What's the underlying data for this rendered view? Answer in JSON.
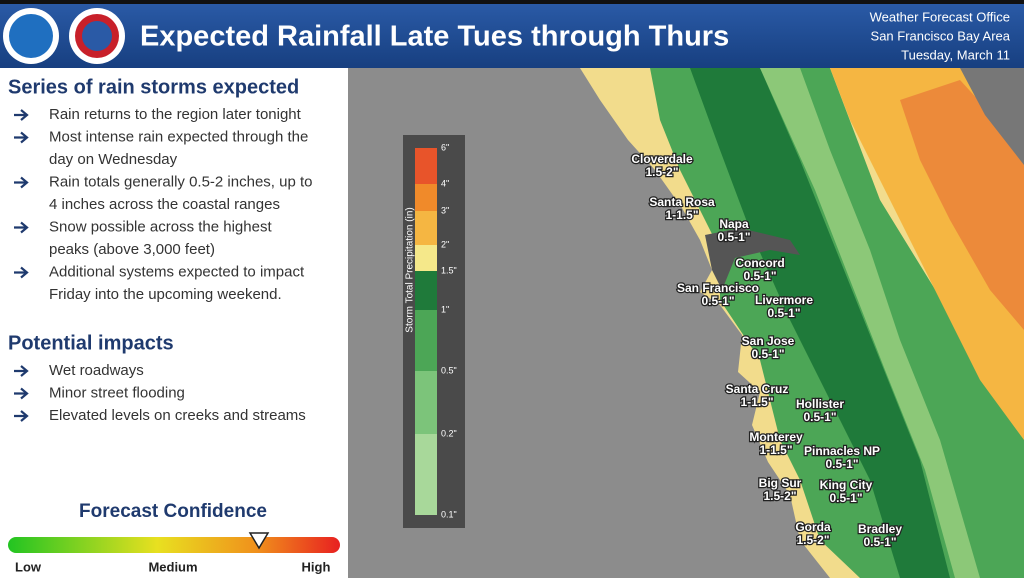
{
  "header": {
    "title": "Expected Rainfall Late Tues through Thurs",
    "office": [
      "Weather Forecast Office",
      "San Francisco Bay Area",
      "Tuesday, March 11"
    ]
  },
  "sections": [
    {
      "heading": "Series of rain storms expected",
      "bullets": [
        [
          "Rain returns to the region later tonight"
        ],
        [
          "Most intense rain expected through the",
          "day on Wednesday"
        ],
        [
          "Rain totals generally 0.5-2 inches, up to",
          "4 inches across the coastal ranges"
        ],
        [
          "Snow possible across the highest",
          "peaks (above 3,000 feet)"
        ],
        [
          "Additional systems expected to impact",
          "Friday into the upcoming weekend."
        ]
      ]
    },
    {
      "heading": "Potential impacts",
      "bullets": [
        [
          "Wet roadways"
        ],
        [
          "Minor street flooding"
        ],
        [
          "Elevated levels on creeks and streams"
        ]
      ]
    }
  ],
  "confidence": {
    "title": "Forecast Confidence",
    "labels": [
      "Low",
      "Medium",
      "High"
    ]
  },
  "legend": {
    "title": "Storm Total Precipitation (in)",
    "ticks": [
      "6\"",
      "4\"",
      "3\"",
      "2\"",
      "1.5\"",
      "1\"",
      "0.5\"",
      "0.2\"",
      "0.1\""
    ],
    "colors": [
      "#e8542a",
      "#f08a2a",
      "#f5b642",
      "#f5e88a",
      "#1f7a3a",
      "#4ca656",
      "#7cc47a",
      "#a8d89a"
    ]
  },
  "cities": [
    {
      "name": "Cloverdale",
      "amount": "1.5-2\""
    },
    {
      "name": "Santa Rosa",
      "amount": "1-1.5\""
    },
    {
      "name": "Napa",
      "amount": "0.5-1\""
    },
    {
      "name": "Concord",
      "amount": "0.5-1\""
    },
    {
      "name": "San Francisco",
      "amount": "0.5-1\""
    },
    {
      "name": "Livermore",
      "amount": "0.5-1\""
    },
    {
      "name": "San Jose",
      "amount": "0.5-1\""
    },
    {
      "name": "Santa Cruz",
      "amount": "1-1.5\""
    },
    {
      "name": "Hollister",
      "amount": "0.5-1\""
    },
    {
      "name": "Monterey",
      "amount": "1-1.5\""
    },
    {
      "name": "Pinnacles NP",
      "amount": "0.5-1\""
    },
    {
      "name": "Big Sur",
      "amount": "1.5-2\""
    },
    {
      "name": "King City",
      "amount": "0.5-1\""
    },
    {
      "name": "Gorda",
      "amount": "1.5-2\""
    },
    {
      "name": "Bradley",
      "amount": "0.5-1\""
    }
  ]
}
